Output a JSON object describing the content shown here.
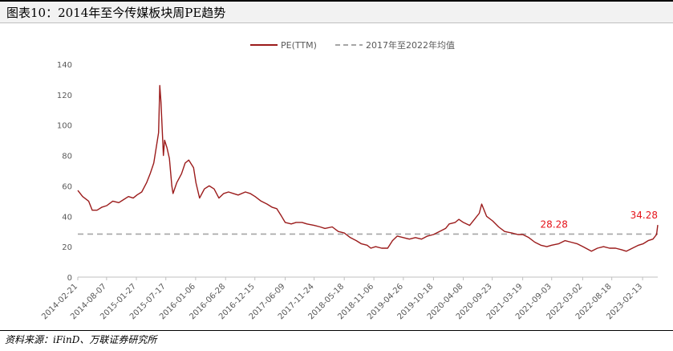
{
  "header": {
    "title": "图表10：2014年至今传媒板块周PE趋势"
  },
  "source": "资料来源：iFinD、万联证券研究所",
  "chart_data": {
    "type": "line",
    "ylim": [
      0,
      140
    ],
    "yticks": [
      0,
      20,
      40,
      60,
      80,
      100,
      120,
      140
    ],
    "grid": false,
    "legend_position": "top-center",
    "colors": {
      "pe_line": "#9b1b1b",
      "avg_line": "#a6a6a6",
      "annotation": "#e5141b"
    },
    "x_start": "2014-02-21",
    "x_end": "2023-05-12",
    "xtick_labels": [
      "2014-02-21",
      "2014-08-07",
      "2015-01-27",
      "2015-07-17",
      "2016-01-06",
      "2016-06-28",
      "2016-12-15",
      "2017-06-09",
      "2017-11-24",
      "2018-05-18",
      "2018-11-06",
      "2019-04-26",
      "2019-10-18",
      "2020-04-08",
      "2020-09-23",
      "2021-03-19",
      "2021-09-03",
      "2022-03-02",
      "2022-08-18",
      "2023-02-13"
    ],
    "series": [
      {
        "name": "PE(TTM)",
        "points": [
          [
            "2014-02-21",
            57
          ],
          [
            "2014-03-21",
            53
          ],
          [
            "2014-04-25",
            50
          ],
          [
            "2014-05-16",
            44
          ],
          [
            "2014-06-13",
            44
          ],
          [
            "2014-07-11",
            46
          ],
          [
            "2014-08-08",
            47
          ],
          [
            "2014-09-12",
            50
          ],
          [
            "2014-10-17",
            49
          ],
          [
            "2014-11-14",
            51
          ],
          [
            "2014-12-12",
            53
          ],
          [
            "2015-01-09",
            52
          ],
          [
            "2015-01-30",
            54
          ],
          [
            "2015-02-27",
            56
          ],
          [
            "2015-03-27",
            62
          ],
          [
            "2015-04-17",
            68
          ],
          [
            "2015-05-08",
            75
          ],
          [
            "2015-05-22",
            85
          ],
          [
            "2015-06-05",
            95
          ],
          [
            "2015-06-12",
            126
          ],
          [
            "2015-06-19",
            115
          ],
          [
            "2015-07-03",
            80
          ],
          [
            "2015-07-10",
            90
          ],
          [
            "2015-07-24",
            85
          ],
          [
            "2015-08-07",
            78
          ],
          [
            "2015-08-21",
            60
          ],
          [
            "2015-08-28",
            55
          ],
          [
            "2015-09-18",
            62
          ],
          [
            "2015-10-16",
            68
          ],
          [
            "2015-11-06",
            75
          ],
          [
            "2015-11-27",
            77
          ],
          [
            "2015-12-25",
            72
          ],
          [
            "2016-01-08",
            62
          ],
          [
            "2016-01-29",
            52
          ],
          [
            "2016-02-26",
            58
          ],
          [
            "2016-03-25",
            60
          ],
          [
            "2016-04-22",
            58
          ],
          [
            "2016-05-20",
            52
          ],
          [
            "2016-06-17",
            55
          ],
          [
            "2016-07-15",
            56
          ],
          [
            "2016-08-12",
            55
          ],
          [
            "2016-09-09",
            54
          ],
          [
            "2016-10-21",
            56
          ],
          [
            "2016-11-18",
            55
          ],
          [
            "2016-12-16",
            53
          ],
          [
            "2017-01-20",
            50
          ],
          [
            "2017-02-24",
            48
          ],
          [
            "2017-03-24",
            46
          ],
          [
            "2017-04-21",
            45
          ],
          [
            "2017-05-19",
            40
          ],
          [
            "2017-06-09",
            36
          ],
          [
            "2017-07-14",
            35
          ],
          [
            "2017-08-11",
            36
          ],
          [
            "2017-09-15",
            36
          ],
          [
            "2017-10-13",
            35
          ],
          [
            "2017-11-24",
            34
          ],
          [
            "2017-12-29",
            33
          ],
          [
            "2018-01-26",
            32
          ],
          [
            "2018-03-09",
            33
          ],
          [
            "2018-04-13",
            30
          ],
          [
            "2018-05-18",
            29
          ],
          [
            "2018-06-22",
            26
          ],
          [
            "2018-07-27",
            24
          ],
          [
            "2018-08-24",
            22
          ],
          [
            "2018-09-28",
            21
          ],
          [
            "2018-10-19",
            19
          ],
          [
            "2018-11-16",
            20
          ],
          [
            "2018-12-21",
            19
          ],
          [
            "2019-01-25",
            19
          ],
          [
            "2019-02-22",
            24
          ],
          [
            "2019-03-22",
            27
          ],
          [
            "2019-04-26",
            26
          ],
          [
            "2019-05-31",
            25
          ],
          [
            "2019-07-05",
            26
          ],
          [
            "2019-08-09",
            25
          ],
          [
            "2019-09-13",
            27
          ],
          [
            "2019-10-18",
            28
          ],
          [
            "2019-11-22",
            30
          ],
          [
            "2019-12-27",
            32
          ],
          [
            "2020-01-17",
            35
          ],
          [
            "2020-02-21",
            36
          ],
          [
            "2020-03-13",
            38
          ],
          [
            "2020-04-08",
            36
          ],
          [
            "2020-05-15",
            34
          ],
          [
            "2020-06-12",
            38
          ],
          [
            "2020-07-10",
            42
          ],
          [
            "2020-07-24",
            48
          ],
          [
            "2020-08-21",
            40
          ],
          [
            "2020-09-25",
            37
          ],
          [
            "2020-10-30",
            33
          ],
          [
            "2020-12-04",
            30
          ],
          [
            "2021-01-15",
            29
          ],
          [
            "2021-02-19",
            28
          ],
          [
            "2021-03-19",
            28
          ],
          [
            "2021-04-23",
            26
          ],
          [
            "2021-05-28",
            23
          ],
          [
            "2021-07-02",
            21
          ],
          [
            "2021-08-06",
            20
          ],
          [
            "2021-09-03",
            21
          ],
          [
            "2021-10-15",
            22
          ],
          [
            "2021-11-19",
            24
          ],
          [
            "2021-12-24",
            23
          ],
          [
            "2022-01-28",
            22
          ],
          [
            "2022-03-04",
            20
          ],
          [
            "2022-04-22",
            17
          ],
          [
            "2022-05-27",
            19
          ],
          [
            "2022-07-01",
            20
          ],
          [
            "2022-08-05",
            19
          ],
          [
            "2022-09-09",
            19
          ],
          [
            "2022-10-14",
            18
          ],
          [
            "2022-11-11",
            17
          ],
          [
            "2022-12-16",
            19
          ],
          [
            "2023-01-20",
            21
          ],
          [
            "2023-02-17",
            22
          ],
          [
            "2023-03-17",
            24
          ],
          [
            "2023-04-14",
            25
          ],
          [
            "2023-05-05",
            28
          ],
          [
            "2023-05-12",
            34.28
          ]
        ]
      },
      {
        "name": "2017年至2022年均值",
        "value": 28.28
      }
    ],
    "annotations": [
      {
        "text": "28.28",
        "x": "2021-09-17",
        "y": 28.28
      },
      {
        "text": "34.28",
        "x": "2023-05-12",
        "y": 34.28
      }
    ]
  }
}
